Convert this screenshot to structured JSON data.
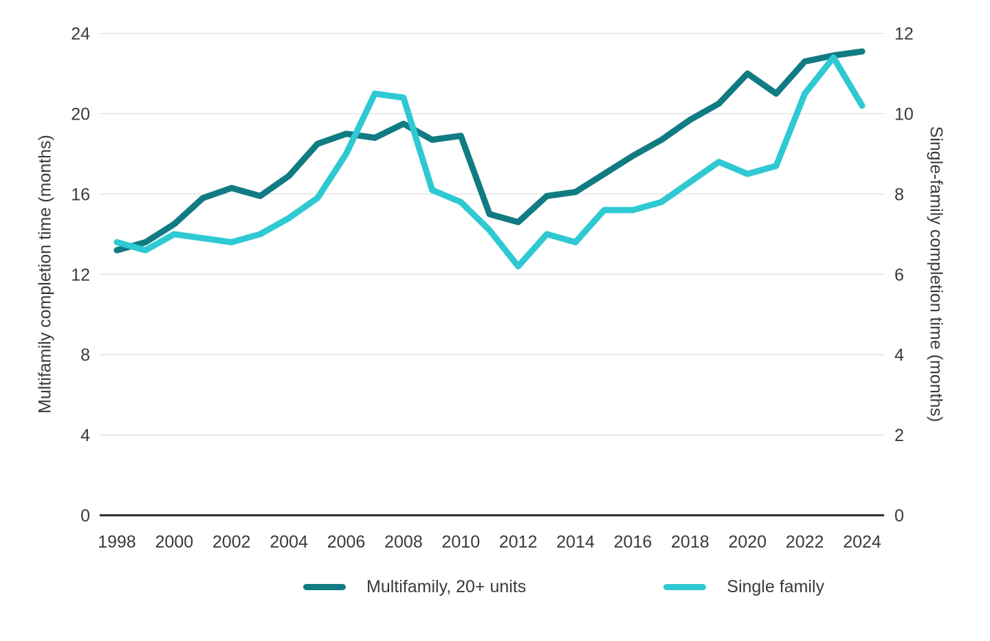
{
  "chart_data": {
    "type": "line",
    "x": [
      1998,
      1999,
      2000,
      2001,
      2002,
      2003,
      2004,
      2005,
      2006,
      2007,
      2008,
      2009,
      2010,
      2011,
      2012,
      2013,
      2014,
      2015,
      2016,
      2017,
      2018,
      2019,
      2020,
      2021,
      2022,
      2023,
      2024
    ],
    "series": [
      {
        "name": "Multifamily, 20+ units",
        "axis": "left",
        "color": "#117b83",
        "values": [
          13.2,
          13.6,
          14.5,
          15.8,
          16.3,
          15.9,
          16.9,
          18.5,
          19.0,
          18.8,
          19.5,
          18.7,
          18.9,
          15.0,
          14.6,
          15.9,
          16.1,
          17.0,
          17.9,
          18.7,
          19.7,
          20.5,
          22.0,
          21.0,
          22.6,
          22.9,
          23.1
        ]
      },
      {
        "name": "Single family",
        "axis": "right",
        "color": "#2ec9d2",
        "values": [
          6.8,
          6.6,
          7.0,
          6.9,
          6.8,
          7.0,
          7.4,
          7.9,
          9.0,
          10.5,
          10.4,
          8.1,
          7.8,
          7.1,
          6.2,
          7.0,
          6.8,
          7.6,
          7.6,
          7.8,
          8.3,
          8.8,
          8.5,
          8.7,
          10.5,
          11.4,
          10.2
        ]
      }
    ],
    "left_axis": {
      "label": "Multifamily completion time (months)",
      "min": 0,
      "max": 24,
      "ticks": [
        0,
        4,
        8,
        12,
        16,
        20,
        24
      ]
    },
    "right_axis": {
      "label": "Single-family completion time (months)",
      "min": 0,
      "max": 12,
      "ticks": [
        0,
        2,
        4,
        6,
        8,
        10,
        12
      ]
    },
    "x_axis": {
      "tick_years": [
        1998,
        2000,
        2002,
        2004,
        2006,
        2008,
        2010,
        2012,
        2014,
        2016,
        2018,
        2020,
        2022,
        2024
      ]
    },
    "grid": true,
    "legend_position": "bottom",
    "title": ""
  },
  "legend": {
    "items": [
      {
        "label": "Multifamily, 20+ units",
        "color": "#117b83"
      },
      {
        "label": "Single family",
        "color": "#2ec9d2"
      }
    ]
  },
  "colors": {
    "multifamily_line": "#117b83",
    "single_family_line": "#2ec9d2",
    "gridline": "#d8d8d8",
    "axis_line": "#262626",
    "text": "#3a3a3a",
    "background": "#ffffff"
  }
}
